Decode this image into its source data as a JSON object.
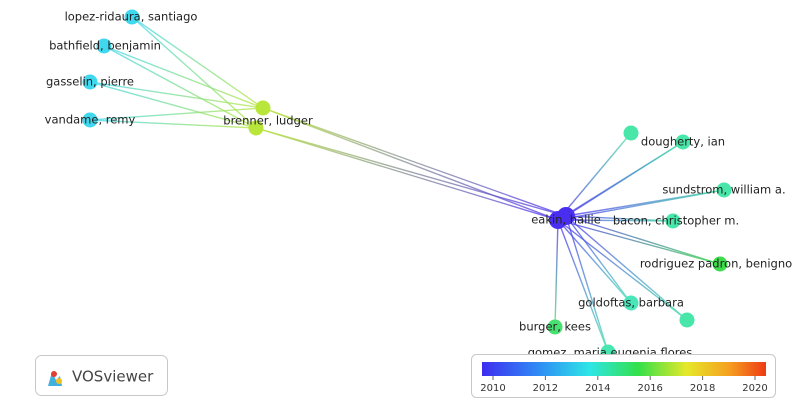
{
  "nodes": [
    {
      "label": "lopez-ridaura, santiago"
    },
    {
      "label": "bathfield, benjamin"
    },
    {
      "label": "gasselin, pierre"
    },
    {
      "label": "vandame, remy"
    },
    {
      "label": "brenner, ludger"
    },
    {
      "label": "dougherty, ian"
    },
    {
      "label": "sundstrom, william a."
    },
    {
      "label": "eakin, hallie"
    },
    {
      "label": "bacon, christopher m."
    },
    {
      "label": "rodriguez padron, benigno"
    },
    {
      "label": "goldoftas, barbara"
    },
    {
      "label": "burger, kees"
    },
    {
      "label": "gomez, maria eugenia flores"
    }
  ],
  "legend": {
    "ticks": [
      2010,
      2012,
      2014,
      2016,
      2018,
      2020
    ]
  },
  "logo": {
    "text": "VOSviewer"
  }
}
